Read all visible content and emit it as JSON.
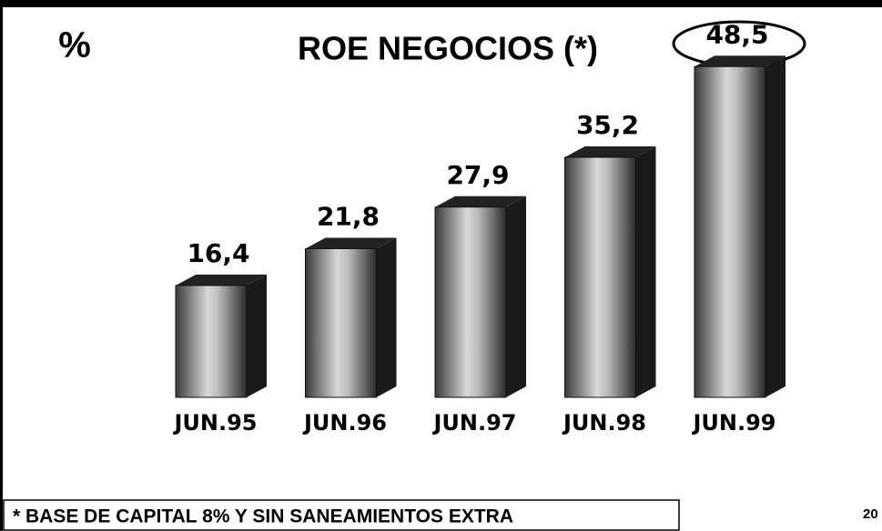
{
  "chart_data": {
    "type": "bar",
    "title": "ROE NEGOCIOS (*)",
    "unit_label": "%",
    "categories": [
      "JUN.95",
      "JUN.96",
      "JUN.97",
      "JUN.98",
      "JUN.99"
    ],
    "values": [
      16.4,
      21.8,
      27.9,
      35.2,
      48.5
    ],
    "value_labels": [
      "16,4",
      "21,8",
      "27,9",
      "35,2",
      "48,5"
    ],
    "color": "#9a9a9a",
    "footnote": "* BASE DE CAPITAL 8% Y SIN SANEAMIENTOS EXTRA",
    "page_number": "20"
  }
}
